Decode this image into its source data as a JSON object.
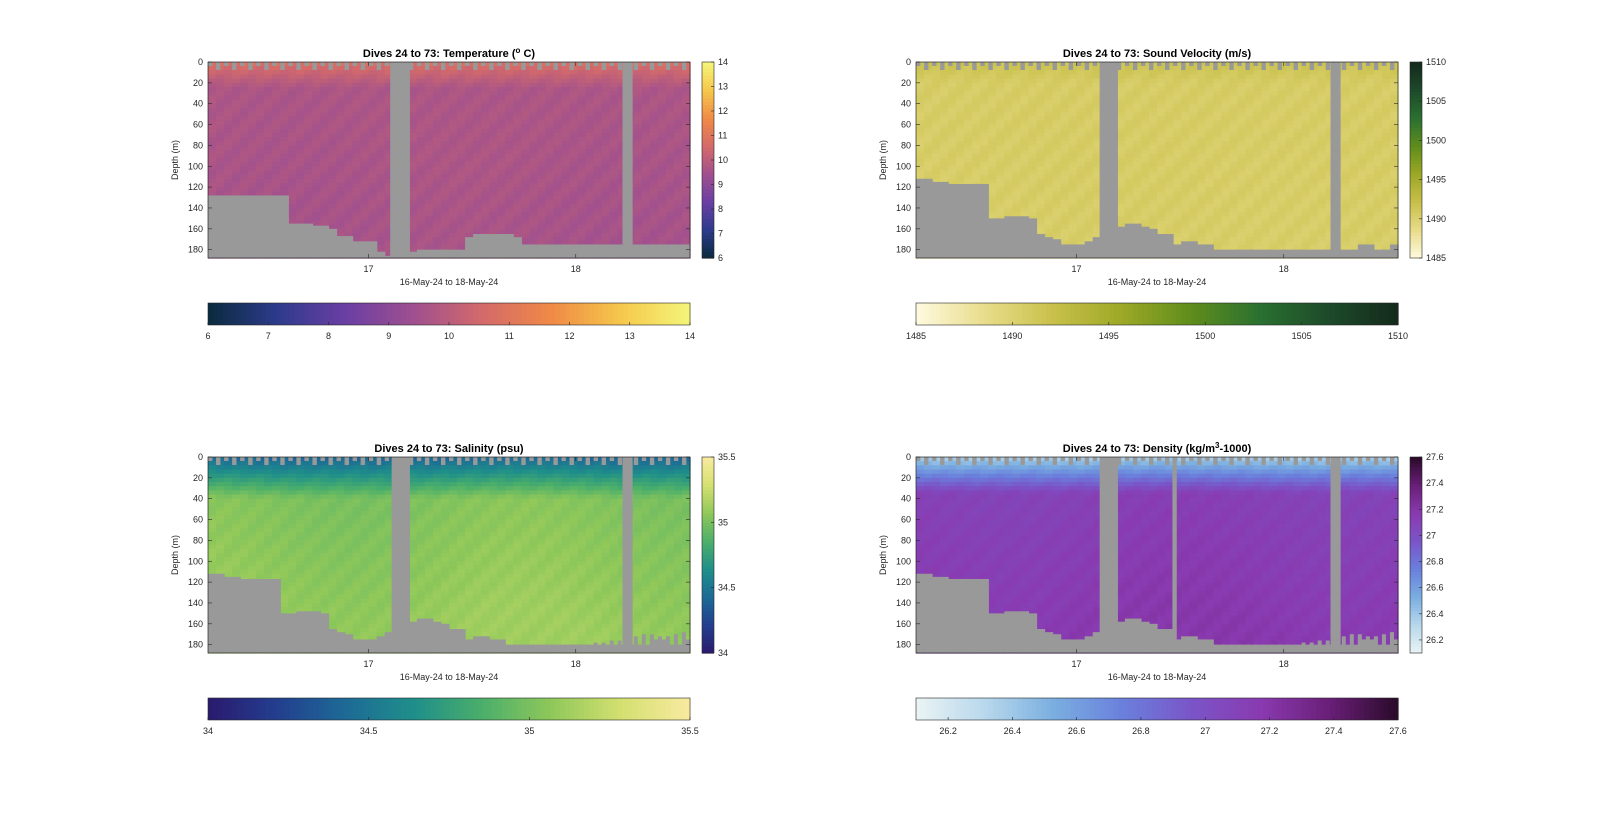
{
  "figure": {
    "background": "#ffffff",
    "mask_color": "#999999"
  },
  "chart_data": [
    {
      "type": "heatmap",
      "title": "Dives 24 to 73: Temperature (",
      "title_sup": "o",
      "title_tail": " C)",
      "xlabel": "16-May-24 to 18-May-24",
      "ylabel": "Depth (m)",
      "x_ticks": [
        "17",
        "18"
      ],
      "x_tick_frac": [
        0.333,
        0.763
      ],
      "ylim": [
        0,
        188
      ],
      "y_ticks": [
        0,
        20,
        40,
        60,
        80,
        100,
        120,
        140,
        160,
        180
      ],
      "colorbar": {
        "range": [
          6,
          14
        ],
        "ticks": [
          6,
          7,
          8,
          9,
          10,
          11,
          12,
          13,
          14
        ],
        "ticks_h": [
          6,
          7,
          8,
          9,
          10,
          11,
          12,
          13,
          14
        ],
        "stops": [
          "#0a2a3d",
          "#2d3b8c",
          "#6a3fa3",
          "#a0508f",
          "#d46a6a",
          "#f08a45",
          "#f5c84c",
          "#f4f57a"
        ]
      },
      "field": {
        "surface": 10.8,
        "deep": 9.4,
        "base": 9.7,
        "surf_depth": 25,
        "dir": 1
      },
      "gaps": [
        [
          0.378,
          0.419
        ],
        [
          0.86,
          0.881
        ]
      ],
      "seafloor": [
        128,
        128,
        128,
        128,
        128,
        128,
        128,
        128,
        128,
        128,
        155,
        155,
        155,
        157,
        157,
        160,
        167,
        167,
        172,
        172,
        172,
        182,
        186,
        184,
        182,
        182,
        180,
        180,
        180,
        180,
        180,
        180,
        168,
        165,
        165,
        165,
        165,
        165,
        168,
        175,
        175,
        175,
        175,
        175,
        175,
        175,
        175,
        175,
        175,
        175,
        175,
        175,
        175,
        175,
        175,
        175,
        175,
        175,
        175,
        175
      ],
      "spikes": [
        180,
        182,
        182,
        183,
        186,
        186,
        186,
        187,
        187,
        187,
        187,
        187,
        187,
        187,
        187,
        187,
        187,
        186,
        186,
        187,
        187,
        187,
        187,
        187,
        187,
        187,
        187,
        187,
        187,
        187,
        187,
        187,
        187,
        187,
        187,
        187,
        187,
        187,
        187,
        187,
        187,
        187,
        187,
        187,
        187,
        187,
        187,
        187,
        187,
        187,
        187,
        187,
        187,
        187,
        187,
        187,
        182,
        182,
        180,
        180
      ]
    },
    {
      "type": "heatmap",
      "title": "Dives 24 to 73: Sound Velocity (m/s)",
      "title_sup": "",
      "title_tail": "",
      "xlabel": "16-May-24 to 18-May-24",
      "ylabel": "Depth (m)",
      "x_ticks": [
        "17",
        "18"
      ],
      "x_tick_frac": [
        0.333,
        0.763
      ],
      "ylim": [
        0,
        188
      ],
      "y_ticks": [
        0,
        20,
        40,
        60,
        80,
        100,
        120,
        140,
        160,
        180
      ],
      "colorbar": {
        "range": [
          1485,
          1510
        ],
        "ticks": [
          1485,
          1490,
          1495,
          1500,
          1505,
          1510
        ],
        "ticks_h": [
          1485,
          1490,
          1495,
          1500,
          1505,
          1510
        ],
        "stops": [
          "#fffae0",
          "#e8dc8a",
          "#c8c04a",
          "#9ca826",
          "#5f8d1c",
          "#2a7030",
          "#1d4a2a",
          "#142a1c"
        ]
      },
      "field": {
        "surface": 1491.8,
        "deep": 1490.2,
        "base": 1490.6,
        "surf_depth": 20,
        "dir": 1
      },
      "gaps": [
        [
          0.381,
          0.419
        ],
        [
          0.86,
          0.881
        ]
      ],
      "seafloor": [
        112,
        112,
        115,
        115,
        117,
        117,
        117,
        117,
        117,
        150,
        150,
        148,
        148,
        148,
        150,
        165,
        168,
        170,
        175,
        175,
        175,
        172,
        168,
        162,
        158,
        158,
        155,
        155,
        158,
        160,
        165,
        165,
        175,
        172,
        172,
        175,
        175,
        180,
        180,
        180,
        180,
        180,
        180,
        180,
        180,
        180,
        180,
        180,
        180,
        180,
        180,
        180,
        180,
        180,
        180,
        175,
        175,
        180,
        180,
        175
      ],
      "spikes": [
        180,
        182,
        182,
        183,
        186,
        186,
        186,
        187,
        187,
        187,
        187,
        187,
        187,
        187,
        187,
        187,
        187,
        186,
        186,
        187,
        187,
        187,
        187,
        187,
        187,
        187,
        187,
        187,
        187,
        187,
        187,
        187,
        187,
        187,
        187,
        187,
        187,
        187,
        187,
        187,
        187,
        187,
        187,
        187,
        187,
        187,
        187,
        187,
        187,
        187,
        187,
        187,
        187,
        187,
        187,
        187,
        182,
        182,
        180,
        180
      ]
    },
    {
      "type": "heatmap",
      "title": "Dives 24 to 73: Salinity (psu)",
      "title_sup": "",
      "title_tail": "",
      "xlabel": "16-May-24 to 18-May-24",
      "ylabel": "Depth (m)",
      "x_ticks": [
        "17",
        "18"
      ],
      "x_tick_frac": [
        0.333,
        0.763
      ],
      "ylim": [
        0,
        188
      ],
      "y_ticks": [
        0,
        20,
        40,
        60,
        80,
        100,
        120,
        140,
        160,
        180
      ],
      "colorbar": {
        "range": [
          34,
          35.5
        ],
        "ticks": [
          34,
          34.5,
          35,
          35.5
        ],
        "ticks_h": [
          34,
          34.5,
          35,
          35.5
        ],
        "stops": [
          "#2a1a6e",
          "#233e8e",
          "#1d6a96",
          "#1f8f8a",
          "#4caf6a",
          "#90c85a",
          "#d4e070",
          "#f8eaa0"
        ]
      },
      "field": {
        "surface": 34.4,
        "deep": 35.2,
        "base": 35.0,
        "surf_depth": 40,
        "dir": 0
      },
      "gaps": [
        [
          0.381,
          0.419
        ],
        [
          0.86,
          0.881
        ]
      ],
      "seafloor": [
        112,
        112,
        115,
        115,
        117,
        117,
        117,
        117,
        117,
        150,
        150,
        148,
        148,
        148,
        150,
        165,
        168,
        170,
        175,
        175,
        175,
        172,
        168,
        162,
        158,
        158,
        155,
        155,
        158,
        160,
        165,
        165,
        175,
        172,
        172,
        175,
        175,
        180,
        180,
        180,
        180,
        180,
        180,
        180,
        180,
        180,
        180,
        180,
        180,
        180,
        180,
        180,
        180,
        180,
        180,
        175,
        175,
        180,
        180,
        175
      ],
      "spikes": [
        178,
        180,
        180,
        180,
        178,
        178,
        180,
        182,
        182,
        182,
        180,
        180,
        180,
        180,
        180,
        180,
        180,
        182,
        182,
        182,
        182,
        182,
        182,
        182,
        182,
        182,
        182,
        180,
        180,
        180,
        180,
        180,
        180,
        180,
        180,
        180,
        180,
        180,
        180,
        180,
        180,
        180,
        180,
        180,
        180,
        180,
        180,
        180,
        178,
        178,
        176,
        176,
        174,
        172,
        170,
        170,
        172,
        172,
        170,
        168
      ]
    },
    {
      "type": "heatmap",
      "title": "Dives 24 to 73: Density (kg/m",
      "title_sup": "3",
      "title_tail": "-1000)",
      "xlabel": "16-May-24 to 18-May-24",
      "ylabel": "Depth (m)",
      "x_ticks": [
        "17",
        "18"
      ],
      "x_tick_frac": [
        0.333,
        0.763
      ],
      "ylim": [
        0,
        188
      ],
      "y_ticks": [
        0,
        20,
        40,
        60,
        80,
        100,
        120,
        140,
        160,
        180
      ],
      "colorbar": {
        "range": [
          26.1,
          27.6
        ],
        "ticks": [
          26.2,
          26.4,
          26.6,
          26.8,
          27,
          27.2,
          27.4,
          27.6
        ],
        "ticks_h": [
          26.2,
          26.4,
          26.6,
          26.8,
          27,
          27.2,
          27.4,
          27.6
        ],
        "stops": [
          "#eaf4f4",
          "#b8d8ec",
          "#7aaee0",
          "#6a80dc",
          "#7a55c8",
          "#8a3ab0",
          "#6a1f78",
          "#2a0a2a"
        ]
      },
      "field": {
        "surface": 26.35,
        "deep": 27.25,
        "base": 27.1,
        "surf_depth": 35,
        "dir": 0
      },
      "gaps": [
        [
          0.381,
          0.419
        ],
        [
          0.532,
          0.541
        ],
        [
          0.86,
          0.881
        ]
      ],
      "seafloor": [
        112,
        112,
        115,
        115,
        117,
        117,
        117,
        117,
        117,
        150,
        150,
        148,
        148,
        148,
        150,
        165,
        168,
        170,
        175,
        175,
        175,
        172,
        168,
        162,
        158,
        158,
        155,
        155,
        158,
        160,
        165,
        165,
        175,
        172,
        172,
        175,
        175,
        180,
        180,
        180,
        180,
        180,
        180,
        180,
        180,
        180,
        180,
        180,
        180,
        180,
        180,
        180,
        180,
        180,
        180,
        175,
        175,
        180,
        180,
        175
      ],
      "spikes": [
        178,
        180,
        180,
        180,
        178,
        178,
        180,
        182,
        182,
        182,
        180,
        180,
        180,
        180,
        180,
        180,
        180,
        182,
        182,
        182,
        182,
        182,
        182,
        182,
        182,
        182,
        182,
        180,
        180,
        180,
        180,
        180,
        180,
        180,
        180,
        180,
        180,
        180,
        180,
        180,
        180,
        180,
        180,
        180,
        180,
        180,
        180,
        180,
        178,
        178,
        176,
        176,
        174,
        172,
        170,
        170,
        172,
        172,
        170,
        168
      ]
    }
  ]
}
